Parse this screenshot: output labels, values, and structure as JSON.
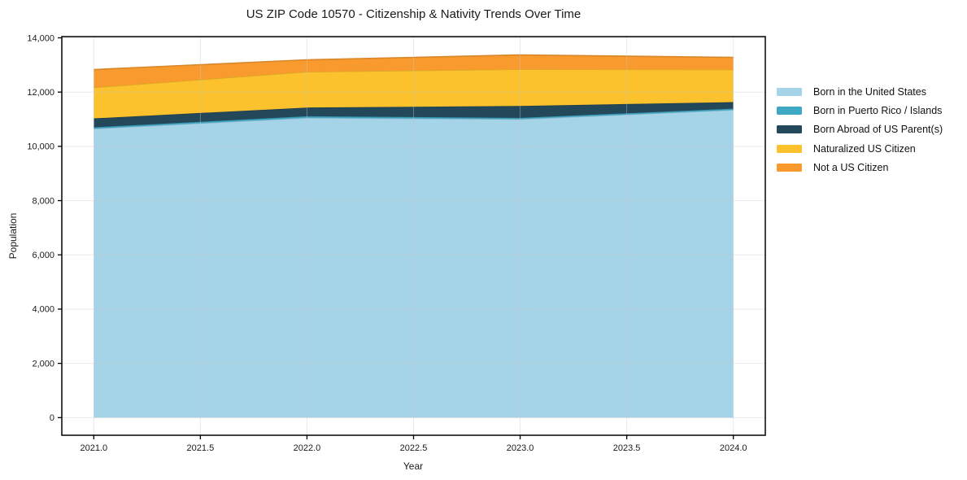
{
  "title": "US ZIP Code 10570 - Citizenship & Nativity Trends Over Time",
  "chart_data": {
    "type": "area",
    "stacked": true,
    "title": "US ZIP Code 10570 - Citizenship & Nativity Trends Over Time",
    "xlabel": "Year",
    "ylabel": "Population",
    "x": [
      2021,
      2022,
      2023,
      2024
    ],
    "series": [
      {
        "name": "Born in the United States",
        "color": "#a5d3e8",
        "values": [
          10650,
          11050,
          11000,
          11340
        ]
      },
      {
        "name": "Born in Puerto Rico / Islands",
        "color": "#3fa8c5",
        "values": [
          50,
          60,
          50,
          50
        ]
      },
      {
        "name": "Born Abroad of US Parent(s)",
        "color": "#22485a",
        "values": [
          330,
          320,
          440,
          240
        ]
      },
      {
        "name": "Naturalized US Citizen",
        "color": "#fcc22d",
        "values": [
          1140,
          1320,
          1350,
          1200
        ]
      },
      {
        "name": "Not a US Citizen",
        "color": "#f89a2e",
        "values": [
          660,
          440,
          530,
          450
        ]
      }
    ],
    "totals": [
      12830,
      13190,
      13370,
      13280
    ],
    "xlim": [
      2020.85,
      2024.15
    ],
    "ylim": [
      -650,
      14045
    ],
    "xticks": [
      2021.0,
      2021.5,
      2022.0,
      2022.5,
      2023.0,
      2023.5,
      2024.0
    ],
    "xtick_labels": [
      "2021.0",
      "2021.5",
      "2022.0",
      "2022.5",
      "2023.0",
      "2023.5",
      "2024.0"
    ],
    "yticks": [
      0,
      2000,
      4000,
      6000,
      8000,
      10000,
      12000,
      14000
    ],
    "ytick_labels": [
      "0",
      "2,000",
      "4,000",
      "6,000",
      "8,000",
      "10,000",
      "12,000",
      "14,000"
    ],
    "grid": true,
    "grid_color": "#c8c8c8",
    "axis_color": "#000000",
    "legend_position": "right"
  }
}
